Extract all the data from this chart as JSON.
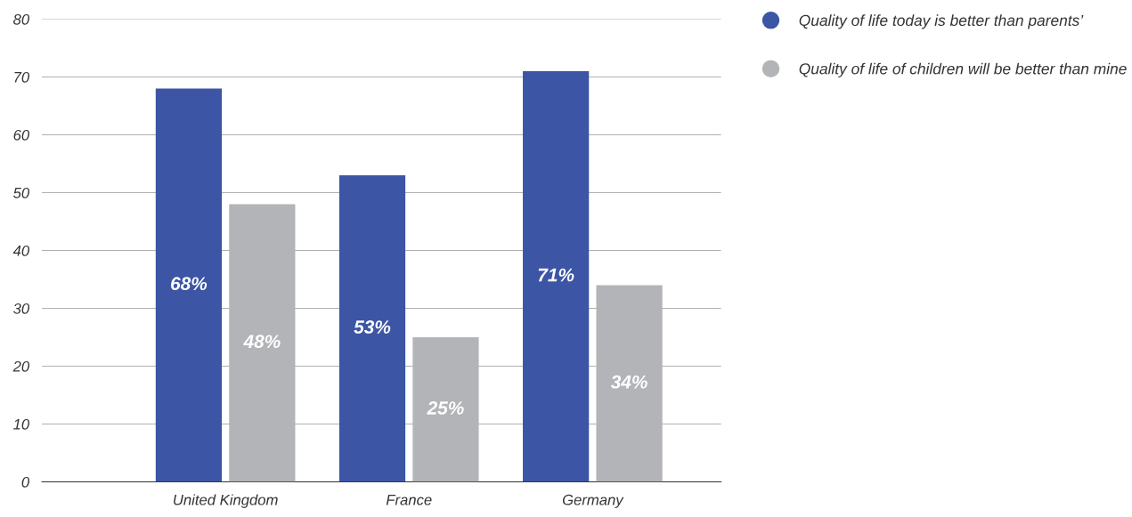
{
  "chart_data": {
    "type": "bar",
    "categories": [
      "United Kingdom",
      "France",
      "Germany"
    ],
    "series": [
      {
        "name": "Quality of life today is better than parents’",
        "color": "#3c55a5",
        "values": [
          68,
          53,
          71
        ]
      },
      {
        "name": "Quality of life of children will be better than mine",
        "color": "#b3b4b8",
        "values": [
          48,
          25,
          34
        ]
      }
    ],
    "value_labels": [
      [
        "68%",
        "53%",
        "71%"
      ],
      [
        "48%",
        "25%",
        "34%"
      ]
    ],
    "ylim": [
      0,
      80
    ],
    "yticks": [
      0,
      10,
      20,
      30,
      40,
      50,
      60,
      70,
      80
    ],
    "grid": "y",
    "legend": "top right"
  }
}
